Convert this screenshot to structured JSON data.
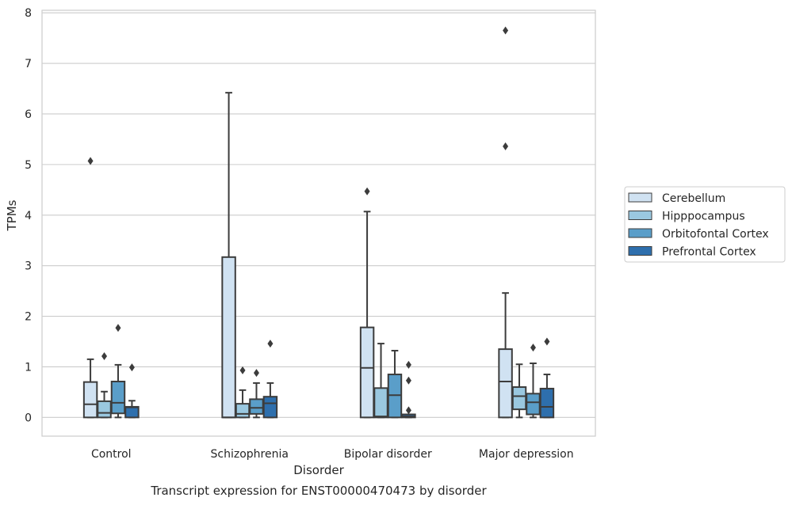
{
  "chart_data": {
    "type": "box",
    "caption": "Transcript expression for ENST00000470473 by disorder",
    "xlabel": "Disorder",
    "ylabel": "TPMs",
    "ylim": [
      -0.37,
      8.05
    ],
    "yticks": [
      0,
      1,
      2,
      3,
      4,
      5,
      6,
      7,
      8
    ],
    "grid": "horizontal",
    "legend_position": "right",
    "categories": [
      "Control",
      "Schizophrenia",
      "Bipolar disorder",
      "Major depression"
    ],
    "series": [
      {
        "name": "Cerebellum",
        "color": "#d0e2f2",
        "boxes": [
          {
            "whisker_low": 0,
            "q1": 0,
            "median": 0.26,
            "q3": 0.7,
            "whisker_high": 1.15,
            "outliers": [
              5.07
            ]
          },
          {
            "whisker_low": 0,
            "q1": 0,
            "median": 0,
            "q3": 3.17,
            "whisker_high": 6.42,
            "outliers": []
          },
          {
            "whisker_low": 0,
            "q1": 0,
            "median": 0.98,
            "q3": 1.78,
            "whisker_high": 4.07,
            "outliers": [
              4.47
            ]
          },
          {
            "whisker_low": 0,
            "q1": 0,
            "median": 0.71,
            "q3": 1.35,
            "whisker_high": 2.46,
            "outliers": [
              5.36,
              7.65
            ]
          }
        ]
      },
      {
        "name": "Hipppocampus",
        "color": "#9ac8e0",
        "boxes": [
          {
            "whisker_low": 0,
            "q1": 0,
            "median": 0.09,
            "q3": 0.32,
            "whisker_high": 0.51,
            "outliers": [
              1.21
            ]
          },
          {
            "whisker_low": 0,
            "q1": 0,
            "median": 0.07,
            "q3": 0.27,
            "whisker_high": 0.54,
            "outliers": [
              0.93
            ]
          },
          {
            "whisker_low": 0,
            "q1": 0,
            "median": 0.02,
            "q3": 0.58,
            "whisker_high": 1.46,
            "outliers": []
          },
          {
            "whisker_low": 0,
            "q1": 0.16,
            "median": 0.42,
            "q3": 0.6,
            "whisker_high": 1.05,
            "outliers": []
          }
        ]
      },
      {
        "name": "Orbitofontal Cortex",
        "color": "#5a9ec9",
        "boxes": [
          {
            "whisker_low": 0,
            "q1": 0.08,
            "median": 0.29,
            "q3": 0.71,
            "whisker_high": 1.04,
            "outliers": [
              1.77
            ]
          },
          {
            "whisker_low": 0,
            "q1": 0.07,
            "median": 0.19,
            "q3": 0.36,
            "whisker_high": 0.68,
            "outliers": [
              0.88
            ]
          },
          {
            "whisker_low": 0,
            "q1": 0,
            "median": 0.44,
            "q3": 0.85,
            "whisker_high": 1.32,
            "outliers": []
          },
          {
            "whisker_low": 0,
            "q1": 0.06,
            "median": 0.3,
            "q3": 0.47,
            "whisker_high": 1.07,
            "outliers": [
              1.38
            ]
          }
        ]
      },
      {
        "name": "Prefrontal Cortex",
        "color": "#2e6fad",
        "boxes": [
          {
            "whisker_low": 0,
            "q1": 0,
            "median": 0.2,
            "q3": 0.21,
            "whisker_high": 0.33,
            "outliers": [
              0.99
            ]
          },
          {
            "whisker_low": 0,
            "q1": 0,
            "median": 0.28,
            "q3": 0.41,
            "whisker_high": 0.68,
            "outliers": [
              1.46
            ]
          },
          {
            "whisker_low": 0,
            "q1": 0,
            "median": 0.02,
            "q3": 0.06,
            "whisker_high": 0.06,
            "outliers": [
              0.14,
              0.73,
              1.04
            ]
          },
          {
            "whisker_low": 0,
            "q1": 0,
            "median": 0.21,
            "q3": 0.57,
            "whisker_high": 0.85,
            "outliers": [
              1.5
            ]
          }
        ]
      }
    ]
  }
}
